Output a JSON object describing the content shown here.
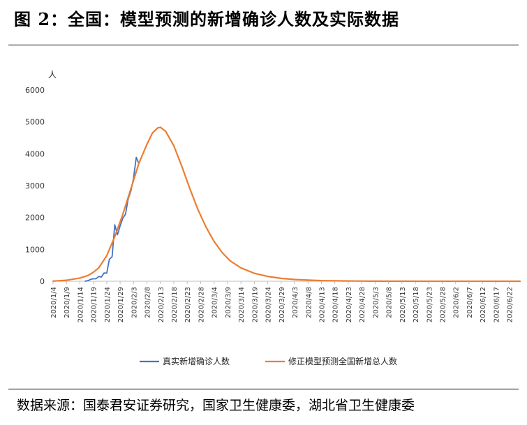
{
  "figure": {
    "title": "图 2：全国：模型预测的新增确诊人数及实际数据",
    "source": "数据来源：国泰君安证券研究，国家卫生健康委，湖北省卫生健康委"
  },
  "colors": {
    "actual": "#4472C4",
    "model": "#ED7D31",
    "axis": "#bfbfbf"
  },
  "chart_data": {
    "type": "line",
    "ylabel": "人",
    "ylim": [
      0,
      6000
    ],
    "yticks": [
      0,
      1000,
      2000,
      3000,
      4000,
      5000,
      6000
    ],
    "x_start": "2020/1/4",
    "x_end": "2020/6/26",
    "xticks": [
      "2020/1/4",
      "2020/1/9",
      "2020/1/14",
      "2020/1/19",
      "2020/1/24",
      "2020/1/29",
      "2020/2/3",
      "2020/2/8",
      "2020/2/13",
      "2020/2/18",
      "2020/2/23",
      "2020/2/28",
      "2020/3/4",
      "2020/3/9",
      "2020/3/14",
      "2020/3/19",
      "2020/3/24",
      "2020/3/29",
      "2020/4/3",
      "2020/4/8",
      "2020/4/13",
      "2020/4/18",
      "2020/4/23",
      "2020/4/28",
      "2020/5/3",
      "2020/5/8",
      "2020/5/13",
      "2020/5/18",
      "2020/5/23",
      "2020/5/28",
      "2020/6/2",
      "2020/6/7",
      "2020/6/12",
      "2020/6/17",
      "2020/6/22"
    ],
    "legend_position": "bottom",
    "series": [
      {
        "name": "真实新增确诊人数",
        "color_key": "actual",
        "points": [
          [
            "2020/1/16",
            4
          ],
          [
            "2020/1/17",
            17
          ],
          [
            "2020/1/18",
            59
          ],
          [
            "2020/1/19",
            77
          ],
          [
            "2020/1/20",
            77
          ],
          [
            "2020/1/21",
            149
          ],
          [
            "2020/1/22",
            131
          ],
          [
            "2020/1/23",
            259
          ],
          [
            "2020/1/24",
            254
          ],
          [
            "2020/1/25",
            688
          ],
          [
            "2020/1/26",
            769
          ],
          [
            "2020/1/27",
            1771
          ],
          [
            "2020/1/28",
            1459
          ],
          [
            "2020/1/29",
            1737
          ],
          [
            "2020/1/30",
            1982
          ],
          [
            "2020/1/31",
            2102
          ],
          [
            "2020/2/1",
            2590
          ],
          [
            "2020/2/2",
            2829
          ],
          [
            "2020/2/3",
            3235
          ],
          [
            "2020/2/4",
            3887
          ],
          [
            "2020/2/5",
            3694
          ]
        ]
      },
      {
        "name": "修正模型预测全国新增总人数",
        "color_key": "model",
        "points": [
          [
            "2020/1/4",
            5
          ],
          [
            "2020/1/9",
            30
          ],
          [
            "2020/1/14",
            100
          ],
          [
            "2020/1/17",
            180
          ],
          [
            "2020/1/19",
            280
          ],
          [
            "2020/1/21",
            420
          ],
          [
            "2020/1/24",
            800
          ],
          [
            "2020/1/27",
            1400
          ],
          [
            "2020/1/30",
            2100
          ],
          [
            "2020/2/2",
            2900
          ],
          [
            "2020/2/5",
            3700
          ],
          [
            "2020/2/8",
            4300
          ],
          [
            "2020/2/10",
            4650
          ],
          [
            "2020/2/12",
            4810
          ],
          [
            "2020/2/13",
            4830
          ],
          [
            "2020/2/15",
            4700
          ],
          [
            "2020/2/18",
            4250
          ],
          [
            "2020/2/21",
            3600
          ],
          [
            "2020/2/24",
            2900
          ],
          [
            "2020/2/27",
            2250
          ],
          [
            "2020/3/1",
            1700
          ],
          [
            "2020/3/4",
            1250
          ],
          [
            "2020/3/7",
            900
          ],
          [
            "2020/3/10",
            640
          ],
          [
            "2020/3/14",
            420
          ],
          [
            "2020/3/19",
            250
          ],
          [
            "2020/3/24",
            150
          ],
          [
            "2020/3/29",
            90
          ],
          [
            "2020/4/3",
            55
          ],
          [
            "2020/4/8",
            35
          ],
          [
            "2020/4/13",
            20
          ],
          [
            "2020/4/23",
            8
          ],
          [
            "2020/5/3",
            3
          ],
          [
            "2020/5/23",
            1
          ],
          [
            "2020/6/26",
            0
          ]
        ]
      }
    ]
  }
}
